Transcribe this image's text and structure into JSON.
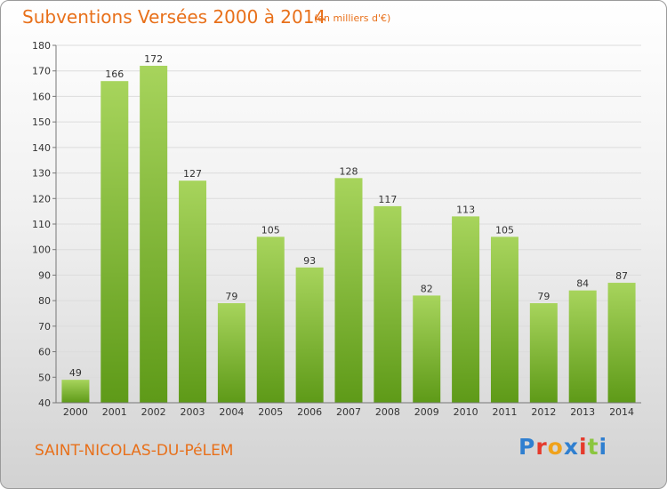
{
  "title": "Subventions Versées 2000 à 2014",
  "unit_note": "(en milliers d'€)",
  "commune": "SAINT-NICOLAS-DU-PéLEM",
  "logo": {
    "text": "Proxiti",
    "letter_colors": [
      "#2f7fd0",
      "#e53a2c",
      "#f0a21b",
      "#2f7fd0",
      "#e53a2c",
      "#8bc63f",
      "#2f7fd0"
    ]
  },
  "colors": {
    "bar_top": "#a7d45c",
    "bar_bottom": "#5e9a18",
    "grid": "#dcdcdc",
    "axis": "#777777",
    "text": "#333333",
    "accent": "#e8701a"
  },
  "chart_data": {
    "type": "bar",
    "title": "Subventions Versées 2000 à 2014",
    "subtitle": "(en milliers d'€)",
    "categories": [
      "2000",
      "2001",
      "2002",
      "2003",
      "2004",
      "2005",
      "2006",
      "2007",
      "2008",
      "2009",
      "2010",
      "2011",
      "2012",
      "2013",
      "2014"
    ],
    "values": [
      49,
      166,
      172,
      127,
      79,
      105,
      93,
      128,
      117,
      82,
      113,
      105,
      79,
      84,
      87
    ],
    "ylim": [
      40,
      180
    ],
    "yticks": [
      40,
      50,
      60,
      70,
      80,
      90,
      100,
      110,
      120,
      130,
      140,
      150,
      160,
      170,
      180
    ],
    "grid": true,
    "legend": "none"
  }
}
